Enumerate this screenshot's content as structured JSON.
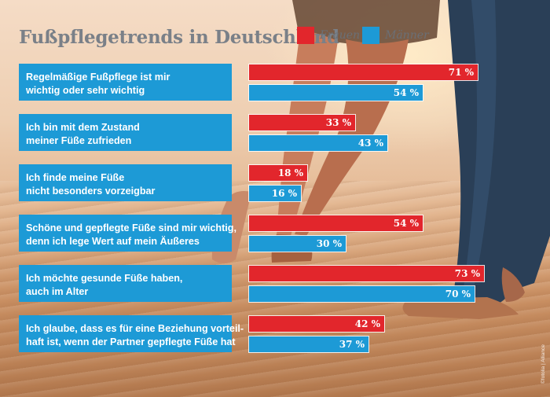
{
  "colors": {
    "frauen": "#e2262c",
    "maenner": "#1d9ad6",
    "label_bg": "#1d9ad6",
    "title": "#7a8088"
  },
  "chart_data": {
    "type": "bar",
    "orientation": "horizontal",
    "title": "Fußpflegetrends in Deutschland",
    "legend_placement": "top-right",
    "grid": false,
    "xlim": [
      0,
      100
    ],
    "unit": "%",
    "categories": [
      [
        "Regelmäßige Fußpflege ist mir",
        "wichtig oder sehr wichtig"
      ],
      [
        "Ich bin mit dem Zustand",
        "meiner Füße zufrieden"
      ],
      [
        "Ich finde meine Füße",
        "nicht besonders vorzeigbar"
      ],
      [
        "Schöne und gepflegte Füße sind mir wichtig,",
        "denn ich lege Wert auf mein Äußeres"
      ],
      [
        "Ich möchte gesunde Füße haben,",
        "auch im Alter"
      ],
      [
        "Ich glaube, dass es für eine Beziehung vorteil-",
        "haft ist, wenn der Partner gepflegte Füße hat"
      ]
    ],
    "series": [
      {
        "name": "Frauen",
        "values": [
          71,
          33,
          18,
          54,
          73,
          42
        ],
        "labels": [
          "71 %",
          "33 %",
          "18 %",
          "54 %",
          "73 %",
          "42 %"
        ]
      },
      {
        "name": "Männer",
        "values": [
          54,
          43,
          16,
          30,
          70,
          37
        ],
        "labels": [
          "54 %",
          "43 %",
          "16 %",
          "30 %",
          "70 %",
          "37 %"
        ]
      }
    ]
  },
  "credit": "©fotolia | Alliance"
}
